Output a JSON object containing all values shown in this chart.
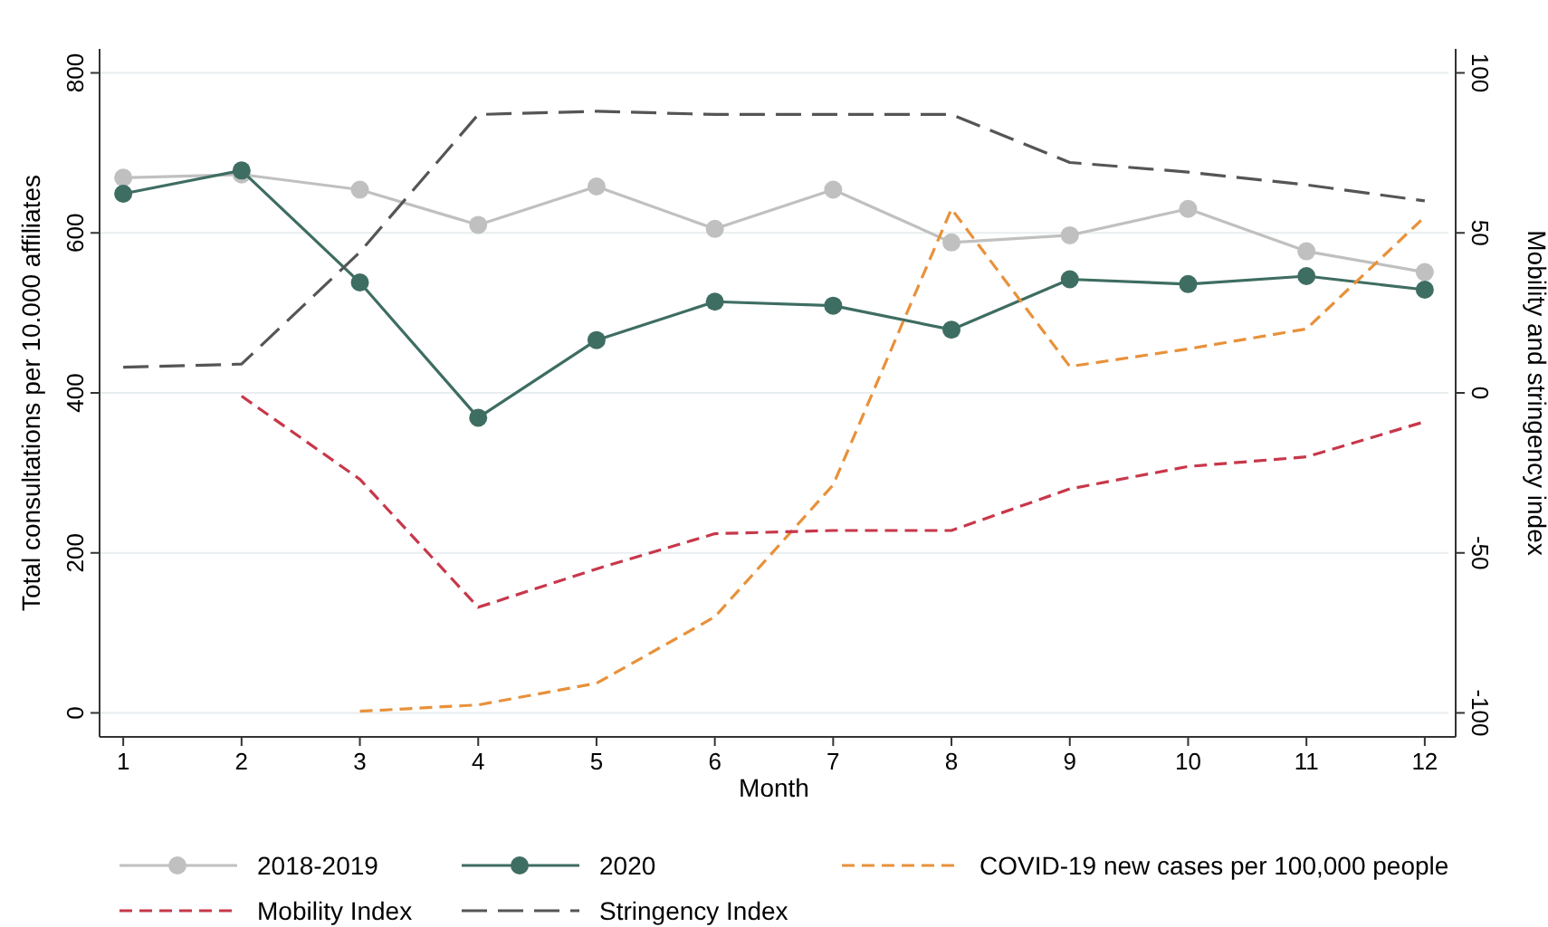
{
  "chart_data": {
    "type": "line",
    "xlabel": "Month",
    "ylabel": "Total consultations per 10.000 affiliates",
    "y2label": "Mobility and stringency index",
    "x": [
      1,
      2,
      3,
      4,
      5,
      6,
      7,
      8,
      9,
      10,
      11,
      12
    ],
    "xlim": [
      0.8,
      12.2
    ],
    "xticks": [
      1,
      2,
      3,
      4,
      5,
      6,
      7,
      8,
      9,
      10,
      11,
      12
    ],
    "ylim": [
      -30,
      830
    ],
    "yticks": [
      0,
      200,
      400,
      600,
      800
    ],
    "y2lim": [
      -107.5,
      107.5
    ],
    "y2ticks": [
      -100,
      -50,
      0,
      50,
      100
    ],
    "grid": "y",
    "legend": "bottom",
    "series": [
      {
        "name": "2018-2019",
        "color": "#c0c0c0",
        "marker": "circle",
        "line_style": "solid",
        "values": [
          669,
          673,
          654,
          610,
          658,
          605,
          654,
          588,
          597,
          630,
          577,
          551
        ]
      },
      {
        "name": "2020",
        "color": "#3e6d62",
        "marker": "circle",
        "line_style": "solid",
        "values": [
          649,
          678,
          538,
          369,
          466,
          514,
          509,
          479,
          542,
          536,
          546,
          529
        ]
      },
      {
        "name": "COVID-19 new cases per 100,000 people",
        "color": "#e8913a",
        "marker": "none",
        "line_style": "dashed",
        "values": [
          null,
          null,
          2,
          10,
          37,
          120,
          285,
          630,
          433,
          455,
          480,
          620
        ]
      },
      {
        "name": "Mobility Index",
        "color": "#c8374a",
        "marker": "none",
        "line_style": "dashed",
        "axis": "y2",
        "values": [
          null,
          -1,
          -27,
          -67,
          -55,
          -44,
          -43,
          -43,
          -30,
          -23,
          -20,
          -9
        ]
      },
      {
        "name": "Stringency Index",
        "color": "#555555",
        "marker": "none",
        "line_style": "dashed",
        "axis": "y2",
        "values": [
          8,
          9,
          44,
          87,
          88,
          87,
          87,
          87,
          72,
          69,
          65,
          60
        ]
      }
    ]
  }
}
